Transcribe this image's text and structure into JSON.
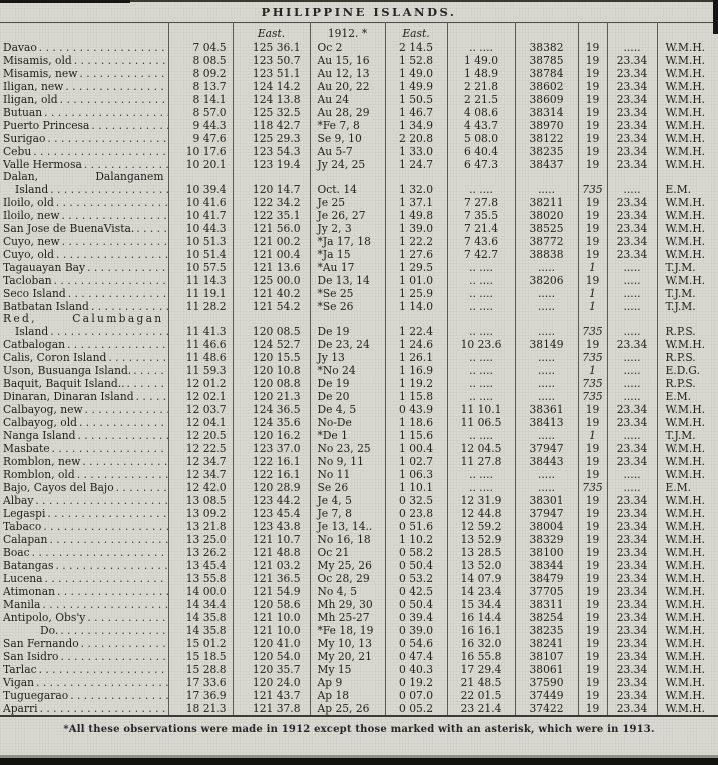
{
  "page": {
    "title": "PHILIPPINE ISLANDS.",
    "footnote": "*All these observations were made in 1912 except those marked with an asterisk, which were in 1913."
  },
  "table": {
    "header": {
      "lon_label": "East.",
      "date_label": "1912. *",
      "east_label": "East."
    },
    "rows": [
      {
        "n": "Davao",
        "c": [
          "7 04.5",
          "125 36.1",
          "Oc 2",
          "2 14.5",
          ".. ....",
          "38382",
          "19",
          ".....",
          "W.M.H."
        ]
      },
      {
        "n": "Misamis, old",
        "c": [
          "8 08.5",
          "123 50.7",
          "Au 15, 16",
          "1 52.8",
          "1 49.0",
          "38785",
          "19",
          "23.34",
          "W.M.H."
        ]
      },
      {
        "n": "Misamis, new",
        "c": [
          "8 09.2",
          "123 51.1",
          "Au 12, 13",
          "1 49.0",
          "1 48.9",
          "38784",
          "19",
          "23.34",
          "W.M.H."
        ]
      },
      {
        "n": "Iligan, new",
        "c": [
          "8 13.7",
          "124 14.2",
          "Au 20, 22",
          "1 49.9",
          "2 21.8",
          "38602",
          "19",
          "23.34",
          "W.M.H."
        ]
      },
      {
        "n": "Iligan, old",
        "c": [
          "8 14.1",
          "124 13.8",
          "Au 24",
          "1 50.5",
          "2 21.5",
          "38609",
          "19",
          "23.34",
          "W.M.H."
        ]
      },
      {
        "n": "Butuan",
        "c": [
          "8 57.0",
          "125 32.5",
          "Au 28, 29",
          "1 46.7",
          "4 08.6",
          "38314",
          "19",
          "23.34",
          "W.M.H."
        ]
      },
      {
        "n": "Puerto Princesa",
        "c": [
          "9 44.3",
          "118 42.7",
          "*Fe 7, 8",
          "1 34.9",
          "4 43.7",
          "38970",
          "19",
          "23.34",
          "W.M.H."
        ]
      },
      {
        "n": "Surigao",
        "c": [
          "9 47.6",
          "125 29.3",
          "Se 9, 10",
          "2 20.8",
          "5 08.0",
          "38122",
          "19",
          "23.34",
          "W.M.H."
        ]
      },
      {
        "n": "Cebu",
        "c": [
          "10 17.6",
          "123 54.3",
          "Au 5-7",
          "1 33.0",
          "6 40.4",
          "38235",
          "19",
          "23.34",
          "W.M.H."
        ]
      },
      {
        "n": "Valle Hermosa",
        "c": [
          "10 20.1",
          "123 19.4",
          "Jy 24, 25",
          "1 24.7",
          "6 47.3",
          "38437",
          "19",
          "23.34",
          "W.M.H."
        ]
      },
      {
        "n": "Dalan, Dalanganem",
        "n2": "Island",
        "c": [
          "10 39.4",
          "120 14.7",
          "Oct. 14",
          "1 32.0",
          ".. ....",
          ".....",
          "735",
          ".....",
          "E.M."
        ],
        "it8": 1
      },
      {
        "n": "Iloilo, old",
        "c": [
          "10 41.6",
          "122 34.2",
          "Je 25",
          "1 37.1",
          "7 27.8",
          "38211",
          "19",
          "23.34",
          "W.M.H."
        ]
      },
      {
        "n": "Iloilo, new",
        "c": [
          "10 41.7",
          "122 35.1",
          "Je 26, 27",
          "1 49.8",
          "7 35.5",
          "38020",
          "19",
          "23.34",
          "W.M.H."
        ]
      },
      {
        "n": "San Jose de BuenaVista.",
        "c": [
          "10 44.3",
          "121 56.0",
          "Jy 2, 3",
          "1 39.0",
          "7 21.4",
          "38525",
          "19",
          "23.34",
          "W.M.H."
        ]
      },
      {
        "n": "Cuyo, new",
        "c": [
          "10 51.3",
          "121 00.2",
          "*Ja 17, 18",
          "1 22.2",
          "7 43.6",
          "38772",
          "19",
          "23.34",
          "W.M.H."
        ]
      },
      {
        "n": "Cuyo, old",
        "c": [
          "10 51.4",
          "121 00.4",
          "*Ja 15",
          "1 27.6",
          "7 42.7",
          "38838",
          "19",
          "23.34",
          "W.M.H."
        ]
      },
      {
        "n": "Tagauayan Bay",
        "c": [
          "10 57.5",
          "121 13.6",
          "*Au 17",
          "1 29.5",
          ".. ....",
          ".....",
          "1",
          ".....",
          "T.J.M."
        ],
        "it8": 1
      },
      {
        "n": "Tacloban",
        "c": [
          "11 14.3",
          "125 00.0",
          "De 13, 14",
          "1 01.0",
          ".. ....",
          "38206",
          "19",
          ".....",
          "W.M.H."
        ]
      },
      {
        "n": "Seco Island",
        "c": [
          "11 19.1",
          "121 40.2",
          "*Se 25",
          "1 25.9",
          ".. ....",
          ".....",
          "1",
          ".....",
          "T.J.M."
        ],
        "it8": 1
      },
      {
        "n": "Batbatan Island",
        "c": [
          "11 28.2",
          "121 54.2",
          "*Se 26",
          "1 14.0",
          ".. ....",
          ".....",
          "1",
          ".....",
          "T.J.M."
        ],
        "it8": 1
      },
      {
        "n": "Red, Calumbagan",
        "n2": "Island",
        "c": [
          "11 41.3",
          "120 08.5",
          "De 19",
          "1 22.4",
          ".. ....",
          ".....",
          "735",
          ".....",
          "R.P.S."
        ],
        "it8": 1,
        "ls": 1
      },
      {
        "n": "Catbalogan",
        "c": [
          "11 46.6",
          "124 52.7",
          "De 23, 24",
          "1 24.6",
          "10 23.6",
          "38149",
          "19",
          "23.34",
          "W.M.H."
        ]
      },
      {
        "n": "Calis, Coron Island",
        "c": [
          "11 48.6",
          "120 15.5",
          "Jy 13",
          "1 26.1",
          ".. ....",
          ".....",
          "735",
          ".....",
          "R.P.S."
        ],
        "it8": 1
      },
      {
        "n": "Uson, Busuanga Island.",
        "c": [
          "11 59.3",
          "120 10.8",
          "*No 24",
          "1 16.9",
          ".. ....",
          ".....",
          "1",
          ".....",
          "E.D.G."
        ],
        "it8": 1
      },
      {
        "n": "Baquit, Baquit Island..",
        "c": [
          "12 01.2",
          "120 08.8",
          "De 19",
          "1 19.2",
          ".. ....",
          ".....",
          "735",
          ".....",
          "R.P.S."
        ],
        "it8": 1
      },
      {
        "n": "Dinaran, Dinaran Island",
        "c": [
          "12 02.1",
          "120 21.3",
          "De 20",
          "1 15.8",
          ".. ....",
          ".....",
          "735",
          ".....",
          "E.M."
        ],
        "it8": 1
      },
      {
        "n": "Calbayog, new",
        "c": [
          "12 03.7",
          "124 36.5",
          "De 4, 5",
          "0 43.9",
          "11 10.1",
          "38361",
          "19",
          "23.34",
          "W.M.H."
        ]
      },
      {
        "n": "Calbayog, old",
        "c": [
          "12 04.1",
          "124 35.6",
          "No-De",
          "1 18.6",
          "11 06.5",
          "38413",
          "19",
          "23.34",
          "W.M.H."
        ]
      },
      {
        "n": "Nanga Island",
        "c": [
          "12 20.5",
          "120 16.2",
          "*De 1",
          "1 15.6",
          ".. ....",
          ".....",
          "1",
          ".....",
          "T.J.M."
        ],
        "it8": 1
      },
      {
        "n": "Masbate",
        "c": [
          "12 22.5",
          "123 37.0",
          "No 23, 25",
          "1 00.4",
          "12 04.5",
          "37947",
          "19",
          "23.34",
          "W.M.H."
        ]
      },
      {
        "n": "Romblon, new",
        "c": [
          "12 34.7",
          "122 16.1",
          "No 9, 11",
          "1 02.7",
          "11 27.8",
          "38443",
          "19",
          "23.34",
          "W.M.H."
        ]
      },
      {
        "n": "Romblon, old",
        "c": [
          "12 34.7",
          "122 16.1",
          "No 11",
          "1 06.3",
          ".. ....",
          ".....",
          "19",
          ".....",
          "W.M.H."
        ]
      },
      {
        "n": "Bajo, Cayos del Bajo",
        "c": [
          "12 42.0",
          "120 28.9",
          "Se 26",
          "1 10.1",
          ".. ....",
          ".....",
          "735",
          ".....",
          "E.M."
        ],
        "it8": 1
      },
      {
        "n": "Albay",
        "c": [
          "13 08.5",
          "123 44.2",
          "Je 4, 5",
          "0 32.5",
          "12 31.9",
          "38301",
          "19",
          "23.34",
          "W.M.H."
        ]
      },
      {
        "n": "Legaspi",
        "c": [
          "13 09.2",
          "123 45.4",
          "Je 7, 8",
          "0 23.8",
          "12 44.8",
          "37947",
          "19",
          "23.34",
          "W.M.H."
        ]
      },
      {
        "n": "Tabaco",
        "c": [
          "13 21.8",
          "123 43.8",
          "Je 13, 14..",
          "0 51.6",
          "12 59.2",
          "38004",
          "19",
          "23.34",
          "W.M.H."
        ]
      },
      {
        "n": "Calapan",
        "c": [
          "13 25.0",
          "121 10.7",
          "No 16, 18",
          "1 10.2",
          "13 52.9",
          "38329",
          "19",
          "23.34",
          "W.M.H."
        ]
      },
      {
        "n": "Boac",
        "c": [
          "13 26.2",
          "121 48.8",
          "Oc 21",
          "0 58.2",
          "13 28.5",
          "38100",
          "19",
          "23.34",
          "W.M.H."
        ]
      },
      {
        "n": "Batangas",
        "c": [
          "13 45.4",
          "121 03.2",
          "My 25, 26",
          "0 50.4",
          "13 52.0",
          "38344",
          "19",
          "23.34",
          "W.M.H."
        ]
      },
      {
        "n": "Lucena",
        "c": [
          "13 55.8",
          "121 36.5",
          "Oc 28, 29",
          "0 53.2",
          "14 07.9",
          "38479",
          "19",
          "23.34",
          "W.M.H."
        ]
      },
      {
        "n": "Atimonan",
        "c": [
          "14 00.0",
          "121 54.9",
          "No 4, 5",
          "0 42.5",
          "14 23.4",
          "37705",
          "19",
          "23.34",
          "W.M.H."
        ]
      },
      {
        "n": "Manila",
        "c": [
          "14 34.4",
          "120 58.6",
          "Mh 29, 30",
          "0 50.4",
          "15 34.4",
          "38311",
          "19",
          "23.34",
          "W.M.H."
        ]
      },
      {
        "n": "Antipolo, Obs'y",
        "c": [
          "14 35.8",
          "121 10.0",
          "Mh 25-27",
          "0 39.4",
          "16 14.4",
          "38254",
          "19",
          "23.34",
          "W.M.H."
        ]
      },
      {
        "n": "Do.",
        "ind": 1,
        "c": [
          "14 35.8",
          "121 10.0",
          "*Fe 18, 19",
          "0 39.0",
          "16 16.1",
          "38235",
          "19",
          "23.34",
          "W.M.H."
        ]
      },
      {
        "n": "San Fernando",
        "c": [
          "15 01.2",
          "120 41.0",
          "My 10, 13",
          "0 54.6",
          "16 32.0",
          "38241",
          "19",
          "23.34",
          "W.M.H."
        ]
      },
      {
        "n": "San Isidro",
        "c": [
          "15 18.5",
          "120 54.0",
          "My 20, 21",
          "0 47.4",
          "16 55.8",
          "38107",
          "19",
          "23.34",
          "W.M.H."
        ]
      },
      {
        "n": "Tarlac",
        "c": [
          "15 28.8",
          "120 35.7",
          "My 15",
          "0 40.3",
          "17 29.4",
          "38061",
          "19",
          "23.34",
          "W.M.H."
        ]
      },
      {
        "n": "Vigan",
        "c": [
          "17 33.6",
          "120 24.0",
          "Ap 9",
          "0 19.2",
          "21 48.5",
          "37590",
          "19",
          "23.34",
          "W.M.H."
        ]
      },
      {
        "n": "Tuguegarao",
        "c": [
          "17 36.9",
          "121 43.7",
          "Ap 18",
          "0 07.0",
          "22 01.5",
          "37449",
          "19",
          "23.34",
          "W.M.H."
        ]
      },
      {
        "n": "Aparri",
        "c": [
          "18 21.3",
          "121 37.8",
          "Ap 25, 26",
          "0 05.2",
          "23 21.4",
          "37422",
          "19",
          "23.34",
          "W.M.H."
        ]
      }
    ]
  }
}
